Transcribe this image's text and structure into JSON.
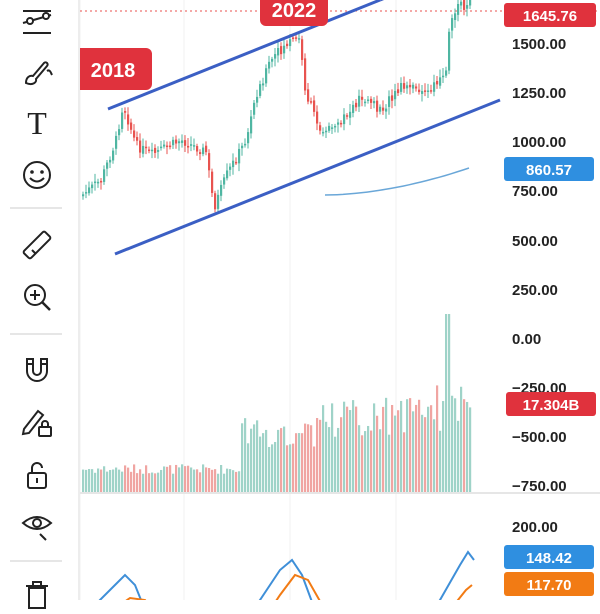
{
  "toolbar": {
    "tools": [
      {
        "name": "trend-lines-tool",
        "icon": "trend-lines-icon"
      },
      {
        "name": "brush-tool",
        "icon": "brush-icon"
      },
      {
        "name": "text-tool",
        "icon": "text-icon",
        "glyph": "T"
      },
      {
        "name": "emoji-tool",
        "icon": "smiley-icon"
      },
      {
        "name": "ruler-tool",
        "icon": "ruler-icon"
      },
      {
        "name": "zoom-tool",
        "icon": "zoom-in-icon"
      },
      {
        "name": "magnet-tool",
        "icon": "magnet-icon"
      },
      {
        "name": "lock-drawings-tool",
        "icon": "pencil-lock-icon"
      },
      {
        "name": "lock-tool",
        "icon": "unlock-icon"
      },
      {
        "name": "hide-tool",
        "icon": "eye-icon"
      },
      {
        "name": "delete-tool",
        "icon": "trash-icon"
      }
    ]
  },
  "chart": {
    "callouts": [
      {
        "name": "callout-2018",
        "text": "2018"
      },
      {
        "name": "callout-2022",
        "text": "2022"
      }
    ],
    "price_axis": {
      "ticks": [
        "1500.00",
        "1250.00",
        "1000.00",
        "750.00",
        "500.00",
        "250.00",
        "0.00",
        "−250.00",
        "−500.00",
        "−750.00"
      ]
    },
    "badges": {
      "last_price": "1645.76",
      "moving_average": "860.57",
      "volume": "17.304B"
    },
    "oscillator_axis": {
      "ticks": [
        "200.00"
      ],
      "values": [
        "148.42",
        "117.70"
      ]
    },
    "colors": {
      "up": "#4fb6a2",
      "down": "#e8534f",
      "volume_up": "#9fd3c8",
      "volume_down": "#f0a5a2",
      "channel": "#3b5fc4",
      "ma": "#6aa7d8",
      "badge_red": "#e0323d",
      "badge_blue": "#2f8fe0",
      "badge_orange": "#f27b14"
    }
  }
}
